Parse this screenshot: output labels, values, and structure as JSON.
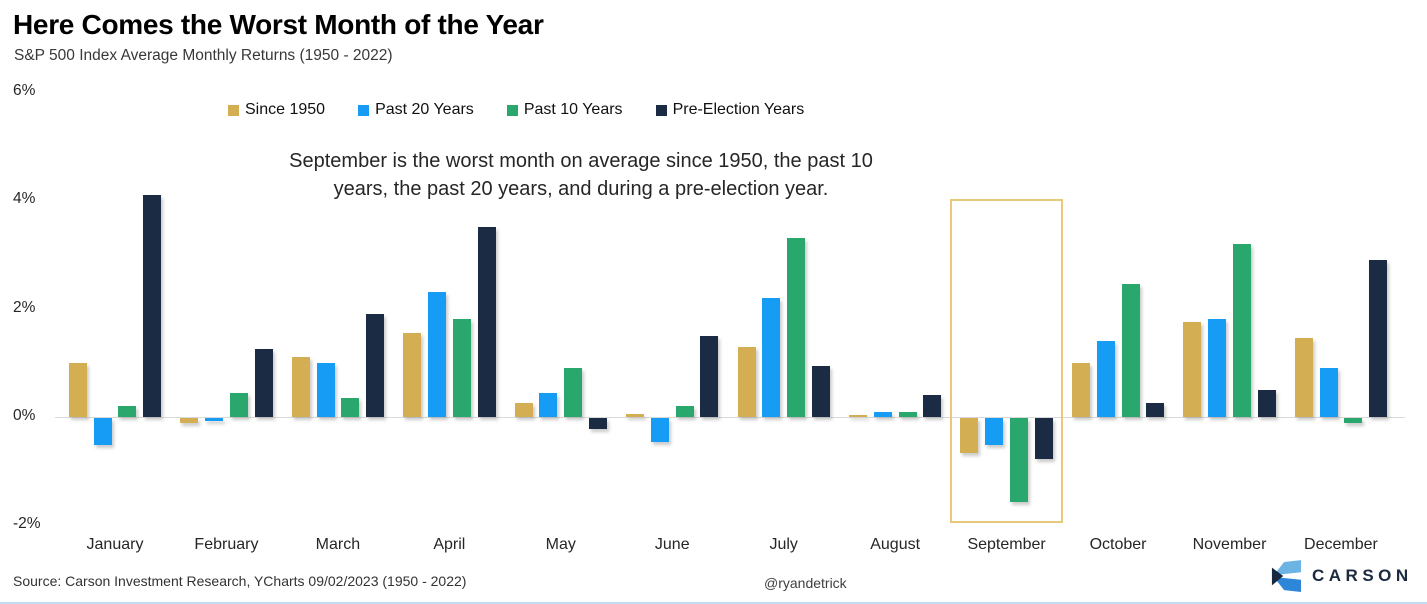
{
  "header": {
    "title": "Here Comes the Worst Month of the Year",
    "subtitle": "S&P 500 Index Average Monthly Returns (1950 - 2022)"
  },
  "annotation": {
    "line1": "September is the worst month on average since 1950, the past 10",
    "line2": "years, the past 20 years, and during a pre-election year."
  },
  "footer": {
    "source": "Source: Carson Investment Research, YCharts 09/02/2023 (1950 - 2022)",
    "handle": "@ryandetrick",
    "brand": "CARSON"
  },
  "icons": {
    "brand_logo": "carson-chevron-logo",
    "legend_marker": "square-swatch"
  },
  "colors": {
    "gold": "#D3AE52",
    "blue": "#169CF5",
    "green": "#2AA76D",
    "navy": "#1B2B44",
    "highlight_border": "#E7C97A",
    "zero_line": "#D9D9D9",
    "bottom_border": "#C3DAEF",
    "logo_light": "#6CB4E4",
    "logo_mid": "#2E86D8",
    "logo_dark": "#16273E",
    "brand_text": "#1B2A40"
  },
  "chart_data": {
    "type": "bar",
    "title": "Here Comes the Worst Month of the Year",
    "subtitle": "S&P 500 Index Average Monthly Returns (1950 - 2022)",
    "unit": "%",
    "categories": [
      "January",
      "February",
      "March",
      "April",
      "May",
      "June",
      "July",
      "August",
      "September",
      "October",
      "November",
      "December"
    ],
    "series": [
      {
        "name": "Since 1950",
        "color": "#D3AE52",
        "values": [
          1.0,
          -0.1,
          1.1,
          1.55,
          0.25,
          0.05,
          1.3,
          0.03,
          -0.65,
          1.0,
          1.75,
          1.45
        ]
      },
      {
        "name": "Past 20 Years",
        "color": "#169CF5",
        "values": [
          -0.5,
          -0.05,
          1.0,
          2.3,
          0.45,
          -0.45,
          2.2,
          0.1,
          -0.5,
          1.4,
          1.8,
          0.9
        ]
      },
      {
        "name": "Past 10 Years",
        "color": "#2AA76D",
        "values": [
          0.2,
          0.45,
          0.35,
          1.8,
          0.9,
          0.2,
          3.3,
          0.1,
          -1.55,
          2.45,
          3.2,
          -0.1
        ]
      },
      {
        "name": "Pre-Election Years",
        "color": "#1B2B44",
        "values": [
          4.1,
          1.25,
          1.9,
          3.5,
          -0.2,
          1.5,
          0.95,
          0.4,
          -0.75,
          0.25,
          0.5,
          2.9
        ]
      }
    ],
    "y_ticks": [
      {
        "label": "6%",
        "value": 6
      },
      {
        "label": "4%",
        "value": 4
      },
      {
        "label": "2%",
        "value": 2
      },
      {
        "label": "0%",
        "value": 0
      },
      {
        "label": "-2%",
        "value": -2
      }
    ],
    "ylim": [
      -2.3,
      6
    ],
    "grid": "zero-line-only",
    "legend_position": "top-center",
    "highlighted_category": "September"
  }
}
